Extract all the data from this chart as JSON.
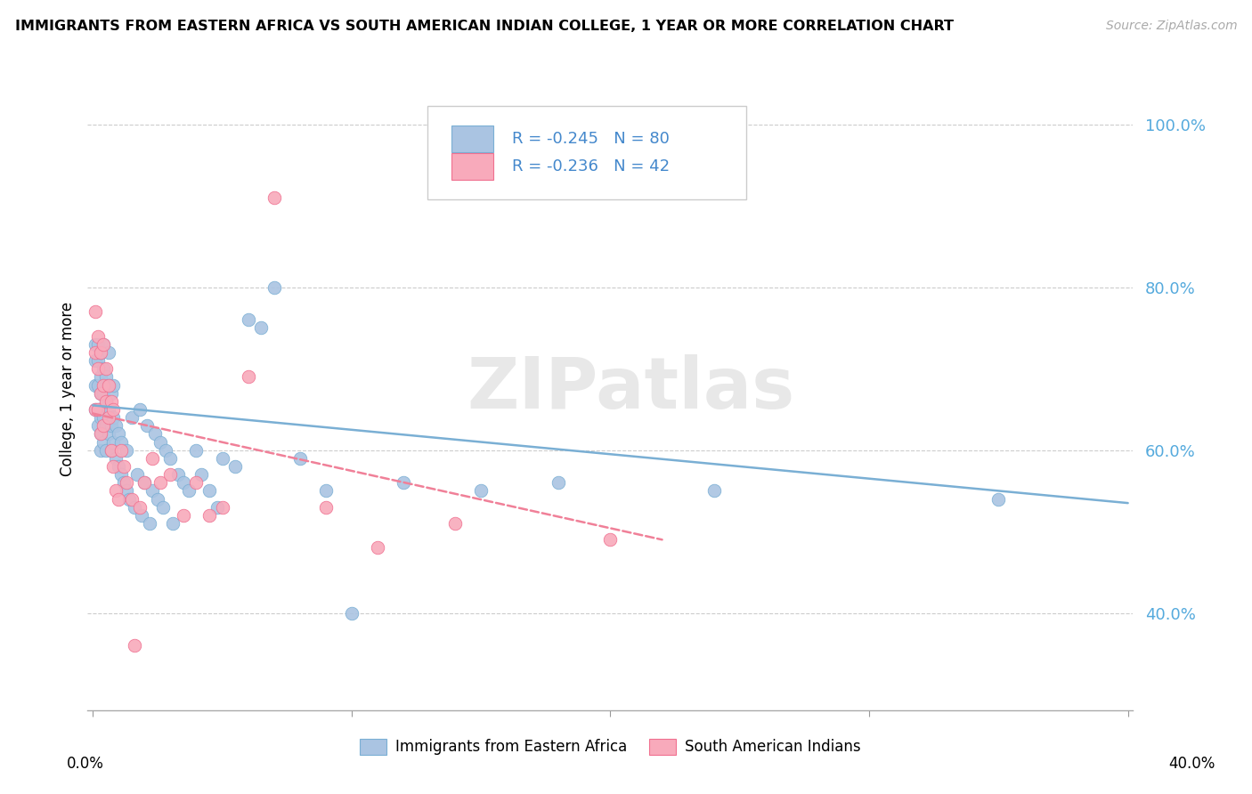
{
  "title": "IMMIGRANTS FROM EASTERN AFRICA VS SOUTH AMERICAN INDIAN COLLEGE, 1 YEAR OR MORE CORRELATION CHART",
  "source": "Source: ZipAtlas.com",
  "ylabel": "College, 1 year or more",
  "legend_label1": "Immigrants from Eastern Africa",
  "legend_label2": "South American Indians",
  "R1": "-0.245",
  "N1": "80",
  "R2": "-0.236",
  "N2": "42",
  "watermark": "ZIPatlas",
  "blue_color": "#aac4e2",
  "pink_color": "#f8aabb",
  "blue_edge_color": "#7aafd4",
  "pink_edge_color": "#f07090",
  "blue_line_color": "#7aafd4",
  "pink_line_color": "#f08098",
  "text_color": "#4488cc",
  "ytick_color": "#55aadd",
  "blue_scatter_x": [
    0.001,
    0.001,
    0.001,
    0.001,
    0.002,
    0.002,
    0.002,
    0.002,
    0.002,
    0.003,
    0.003,
    0.003,
    0.003,
    0.003,
    0.003,
    0.004,
    0.004,
    0.004,
    0.004,
    0.004,
    0.005,
    0.005,
    0.005,
    0.005,
    0.006,
    0.006,
    0.006,
    0.006,
    0.007,
    0.007,
    0.007,
    0.008,
    0.008,
    0.008,
    0.009,
    0.009,
    0.01,
    0.01,
    0.011,
    0.011,
    0.012,
    0.013,
    0.013,
    0.014,
    0.015,
    0.016,
    0.017,
    0.018,
    0.019,
    0.02,
    0.021,
    0.022,
    0.023,
    0.024,
    0.025,
    0.026,
    0.027,
    0.028,
    0.03,
    0.031,
    0.033,
    0.035,
    0.037,
    0.04,
    0.042,
    0.045,
    0.048,
    0.05,
    0.055,
    0.06,
    0.065,
    0.07,
    0.08,
    0.09,
    0.1,
    0.12,
    0.15,
    0.18,
    0.24,
    0.35
  ],
  "blue_scatter_y": [
    0.65,
    0.68,
    0.71,
    0.73,
    0.63,
    0.65,
    0.68,
    0.71,
    0.73,
    0.6,
    0.62,
    0.64,
    0.67,
    0.69,
    0.72,
    0.61,
    0.64,
    0.67,
    0.7,
    0.73,
    0.6,
    0.63,
    0.66,
    0.69,
    0.62,
    0.65,
    0.68,
    0.72,
    0.6,
    0.63,
    0.67,
    0.61,
    0.64,
    0.68,
    0.59,
    0.63,
    0.58,
    0.62,
    0.57,
    0.61,
    0.56,
    0.55,
    0.6,
    0.54,
    0.64,
    0.53,
    0.57,
    0.65,
    0.52,
    0.56,
    0.63,
    0.51,
    0.55,
    0.62,
    0.54,
    0.61,
    0.53,
    0.6,
    0.59,
    0.51,
    0.57,
    0.56,
    0.55,
    0.6,
    0.57,
    0.55,
    0.53,
    0.59,
    0.58,
    0.76,
    0.75,
    0.8,
    0.59,
    0.55,
    0.4,
    0.56,
    0.55,
    0.56,
    0.55,
    0.54
  ],
  "pink_scatter_x": [
    0.001,
    0.001,
    0.001,
    0.002,
    0.002,
    0.002,
    0.003,
    0.003,
    0.003,
    0.004,
    0.004,
    0.004,
    0.005,
    0.005,
    0.006,
    0.006,
    0.007,
    0.007,
    0.008,
    0.008,
    0.009,
    0.01,
    0.011,
    0.012,
    0.013,
    0.015,
    0.016,
    0.018,
    0.02,
    0.023,
    0.026,
    0.03,
    0.035,
    0.04,
    0.045,
    0.05,
    0.06,
    0.07,
    0.09,
    0.11,
    0.14,
    0.2
  ],
  "pink_scatter_y": [
    0.77,
    0.72,
    0.65,
    0.74,
    0.7,
    0.65,
    0.72,
    0.67,
    0.62,
    0.73,
    0.68,
    0.63,
    0.7,
    0.66,
    0.68,
    0.64,
    0.66,
    0.6,
    0.65,
    0.58,
    0.55,
    0.54,
    0.6,
    0.58,
    0.56,
    0.54,
    0.36,
    0.53,
    0.56,
    0.59,
    0.56,
    0.57,
    0.52,
    0.56,
    0.52,
    0.53,
    0.69,
    0.91,
    0.53,
    0.48,
    0.51,
    0.49
  ],
  "blue_trend_x": [
    0.0,
    0.4
  ],
  "blue_trend_y": [
    0.655,
    0.535
  ],
  "pink_trend_x": [
    0.0,
    0.22
  ],
  "pink_trend_y": [
    0.645,
    0.49
  ],
  "xlim": [
    -0.002,
    0.402
  ],
  "ylim": [
    0.28,
    1.07
  ],
  "yticks": [
    0.4,
    0.6,
    0.8,
    1.0
  ],
  "xtick_positions": [
    0.0,
    0.1,
    0.2,
    0.3,
    0.4
  ]
}
